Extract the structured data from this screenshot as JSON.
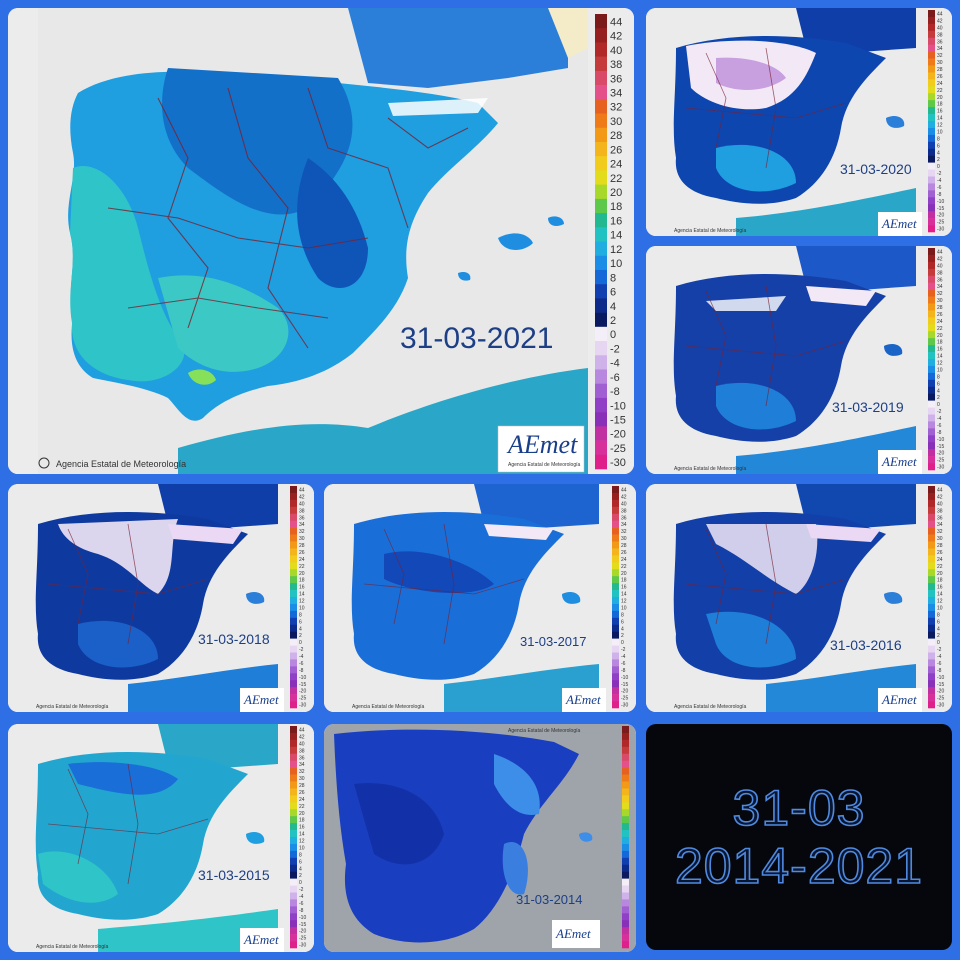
{
  "credit": "Agencia Estatal de Meteorología",
  "logo_text": "AEmet",
  "logo_sub": "Agencia Estatal de Meteorología",
  "scale_values": [
    "44",
    "42",
    "40",
    "38",
    "36",
    "34",
    "32",
    "30",
    "28",
    "26",
    "24",
    "22",
    "20",
    "18",
    "16",
    "14",
    "12",
    "10",
    "8",
    "6",
    "4",
    "2",
    "0",
    "-2",
    "-4",
    "-6",
    "-8",
    "-10",
    "-15",
    "-20",
    "-25",
    "-30"
  ],
  "scale_colors": [
    "#7a1a1a",
    "#962020",
    "#b02828",
    "#c53a3a",
    "#d84a68",
    "#e4508a",
    "#e66020",
    "#ee7a18",
    "#f29a18",
    "#f4b41c",
    "#f2cc1c",
    "#e2dc1c",
    "#a8d82a",
    "#5ec84a",
    "#22b890",
    "#22c2c2",
    "#20aee0",
    "#1a8ee6",
    "#1468d8",
    "#1040b0",
    "#0c2a8a",
    "#0a1a60",
    "#f4eef8",
    "#e6d6f2",
    "#d0b2ea",
    "#b888de",
    "#a060d2",
    "#9040c6",
    "#8830b8",
    "#c030a0",
    "#d8309a",
    "#e0208a"
  ],
  "maps": [
    {
      "id": "2021",
      "date": "31-03-2021"
    },
    {
      "id": "2020",
      "date": "31-03-2020"
    },
    {
      "id": "2019",
      "date": "31-03-2019"
    },
    {
      "id": "2018",
      "date": "31-03-2018"
    },
    {
      "id": "2017",
      "date": "31-03-2017"
    },
    {
      "id": "2016",
      "date": "31-03-2016"
    },
    {
      "id": "2015",
      "date": "31-03-2015"
    },
    {
      "id": "2014",
      "date": "31-03-2014"
    }
  ],
  "summary": {
    "line1": "31-03",
    "line2": "2014-2021"
  }
}
